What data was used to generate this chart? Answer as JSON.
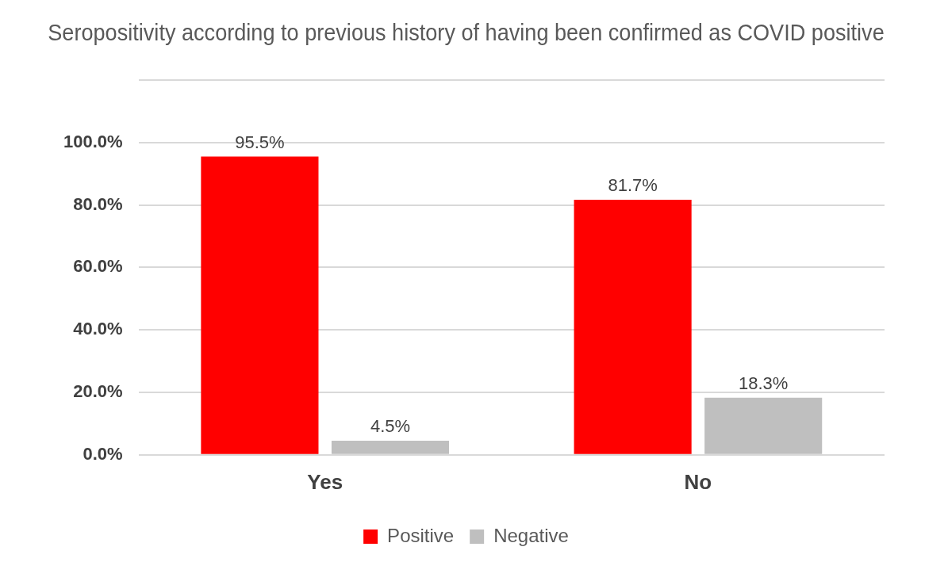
{
  "chart_data": {
    "type": "bar",
    "title": "Seropositivity according to previous history of having been confirmed as COVID positive",
    "categories": [
      "Yes",
      "No"
    ],
    "series": [
      {
        "name": "Positive",
        "color": "#ff0000",
        "values": [
          95.5,
          81.7
        ],
        "value_labels": [
          "95.5%",
          "81.7%"
        ]
      },
      {
        "name": "Negative",
        "color": "#bfbfbf",
        "values": [
          4.5,
          18.3
        ],
        "value_labels": [
          "4.5%",
          "18.3%"
        ]
      }
    ],
    "ylim": [
      0,
      120
    ],
    "yticks": [
      {
        "value": 0,
        "label": "0.0%"
      },
      {
        "value": 20,
        "label": "20.0%"
      },
      {
        "value": 40,
        "label": "40.0%"
      },
      {
        "value": 60,
        "label": "60.0%"
      },
      {
        "value": 80,
        "label": "80.0%"
      },
      {
        "value": 100,
        "label": "100.0%"
      },
      {
        "value": 120,
        "label": null
      }
    ],
    "grid": "y",
    "legend": "bottom"
  }
}
